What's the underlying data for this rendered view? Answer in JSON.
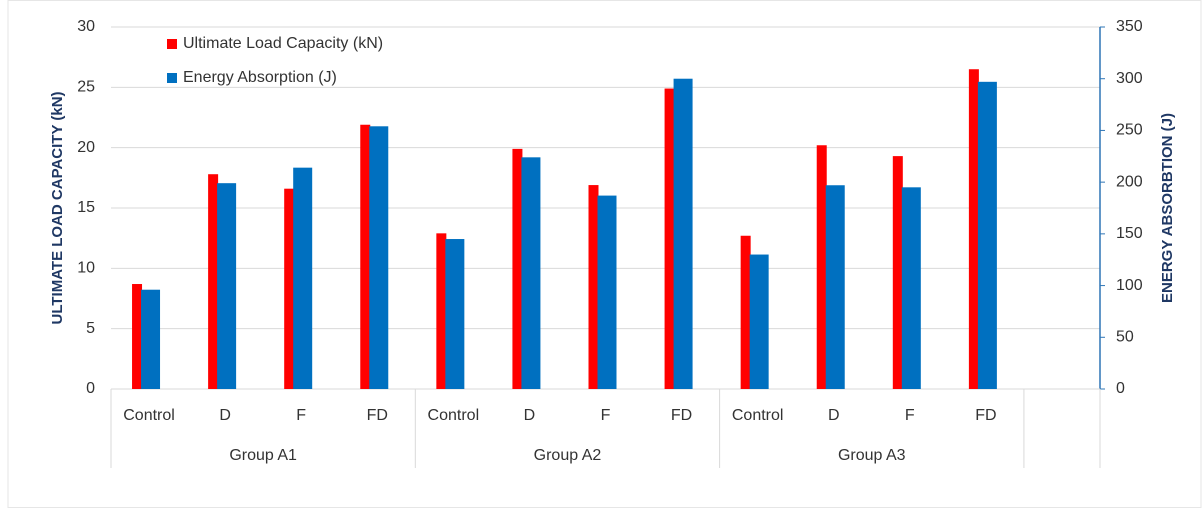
{
  "chart_data": {
    "type": "bar",
    "categories": [
      "Control",
      "D",
      "F",
      "FD",
      "Control",
      "D",
      "F",
      "FD",
      "Control",
      "D",
      "F",
      "FD",
      null
    ],
    "category_groups": [
      "Group A1",
      "Group A1",
      "Group A1",
      "Group A1",
      "Group A2",
      "Group A2",
      "Group A2",
      "Group A2",
      "Group A3",
      "Group A3",
      "Group A3",
      "Group A3",
      null
    ],
    "series": [
      {
        "name": "Ultimate Load Capacity (kN)",
        "color": "#ff0000",
        "values": [
          8.7,
          17.8,
          16.6,
          21.9,
          12.9,
          19.9,
          16.9,
          24.9,
          12.7,
          20.2,
          19.3,
          26.5,
          null
        ]
      },
      {
        "name": "Energy Absorption  (J)",
        "color": "#0070c0",
        "axis": "y2",
        "values": [
          96,
          199,
          214,
          254,
          145,
          224,
          187,
          300,
          130,
          197,
          195,
          297,
          null
        ]
      }
    ],
    "ylabel": "ULTIMATE LOAD CAPACITY (kN)",
    "y2label": "ENERGY ABSORBTION (J)",
    "ylim": [
      0,
      30
    ],
    "yticks": [
      0,
      5,
      10,
      15,
      20,
      25,
      30
    ],
    "y2lim": [
      0,
      350
    ],
    "y2ticks": [
      0,
      50,
      100,
      150,
      200,
      250,
      300,
      350
    ],
    "grid": true,
    "legend": "top-left"
  }
}
